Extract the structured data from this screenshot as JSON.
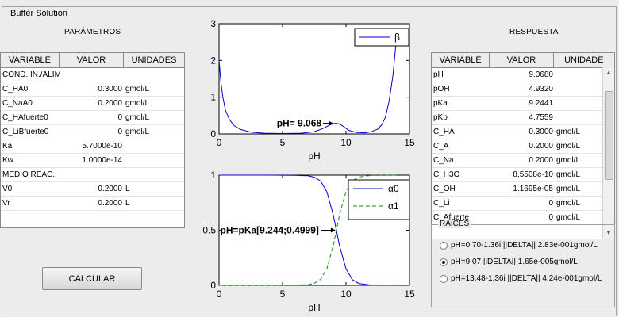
{
  "window": {
    "title": "Buffer Solution"
  },
  "params": {
    "title": "PARÁMETROS",
    "columns": [
      "VARIABLE",
      "VALOR",
      "UNIDADES"
    ],
    "rows": [
      [
        "COND. IN./ALIM.",
        "",
        ""
      ],
      [
        "C_HA0",
        "0.3000",
        "gmol/L"
      ],
      [
        "C_NaA0",
        "0.2000",
        "gmol/L"
      ],
      [
        "C_HAfuerte0",
        "0",
        "gmol/L"
      ],
      [
        "C_LiBfuerte0",
        "0",
        "gmol/L"
      ],
      [
        "Ka",
        "5.7000e-10",
        ""
      ],
      [
        "Kw",
        "1.0000e-14",
        ""
      ],
      [
        "MEDIO REAC.",
        "",
        ""
      ],
      [
        "V0",
        "0.2000",
        "L"
      ],
      [
        "Vr",
        "0.2000",
        "L"
      ]
    ]
  },
  "response": {
    "title": "RESPUESTA",
    "columns": [
      "VARIABLE",
      "VALOR",
      "UNIDADE"
    ],
    "rows": [
      [
        "pH",
        "9.0680",
        ""
      ],
      [
        "pOH",
        "4.9320",
        ""
      ],
      [
        "pKa",
        "9.2441",
        ""
      ],
      [
        "pKb",
        "4.7559",
        ""
      ],
      [
        "C_HA",
        "0.3000",
        "gmol/L"
      ],
      [
        "C_A",
        "0.2000",
        "gmol/L"
      ],
      [
        "C_Na",
        "0.2000",
        "gmol/L"
      ],
      [
        "C_H3O",
        "8.5508e-10",
        "gmol/L"
      ],
      [
        "C_OH",
        "1.1695e-05",
        "gmol/L"
      ],
      [
        "C_Li",
        "0",
        "gmol/L"
      ],
      [
        "C_Afuerte",
        "0",
        "gmol/L"
      ]
    ]
  },
  "buttons": {
    "calc": "CALCULAR"
  },
  "roots": {
    "title": "RAICES",
    "options": [
      {
        "label": "pH=0.70-1.36i ||DELTA|| 2.83e-001gmol/L",
        "selected": false
      },
      {
        "label": "pH=9.07 ||DELTA|| 1.65e-005gmol/L",
        "selected": true
      },
      {
        "label": "pH=13.48-1.36i ||DELTA|| 4.24e-001gmol/L",
        "selected": false
      }
    ]
  },
  "chart_data": [
    {
      "type": "line",
      "xlabel": "pH",
      "xlim": [
        0,
        15
      ],
      "ylim": [
        0,
        3
      ],
      "xticks": [
        "0",
        "5",
        "10",
        "15"
      ],
      "yticks": [
        "0",
        "1",
        "2",
        "3"
      ],
      "series": [
        {
          "name": "β",
          "color": "#0000cc",
          "x": [
            0,
            0.15,
            0.3,
            0.5,
            0.8,
            1.2,
            1.7,
            2.5,
            3.5,
            5,
            6.5,
            7.5,
            8.2,
            8.7,
            9.0,
            9.24,
            9.5,
            9.8,
            10.2,
            10.8,
            11.5,
            12,
            12.5,
            12.8,
            13.1,
            13.4,
            13.7,
            14
          ],
          "y": [
            2.0,
            1.4,
            1.0,
            0.65,
            0.4,
            0.22,
            0.12,
            0.05,
            0.02,
            0.01,
            0.02,
            0.06,
            0.15,
            0.24,
            0.28,
            0.29,
            0.27,
            0.2,
            0.1,
            0.04,
            0.03,
            0.06,
            0.13,
            0.24,
            0.45,
            0.9,
            1.6,
            2.7
          ]
        }
      ],
      "annotation": {
        "text": "pH= 9.068",
        "x": 9.068,
        "y": 0.29
      }
    },
    {
      "type": "line",
      "xlabel": "pH",
      "xlim": [
        0,
        15
      ],
      "ylim": [
        0,
        1
      ],
      "xticks": [
        "0",
        "5",
        "10",
        "15"
      ],
      "yticks": [
        "0",
        "0.5",
        "1"
      ],
      "series": [
        {
          "name": "α0",
          "color": "#0000cc",
          "dash": false,
          "x": [
            0,
            2,
            4,
            6,
            7,
            7.5,
            8,
            8.5,
            9,
            9.244,
            9.5,
            10,
            10.5,
            11,
            12,
            14
          ],
          "y": [
            1,
            1,
            1,
            0.998,
            0.994,
            0.981,
            0.946,
            0.847,
            0.636,
            0.5,
            0.355,
            0.149,
            0.052,
            0.017,
            0.002,
            0
          ]
        },
        {
          "name": "α1",
          "color": "#118811",
          "dash": true,
          "x": [
            0,
            2,
            4,
            6,
            7,
            7.5,
            8,
            8.5,
            9,
            9.244,
            9.5,
            10,
            10.5,
            11,
            12,
            14
          ],
          "y": [
            0,
            0,
            0,
            0.002,
            0.006,
            0.019,
            0.054,
            0.153,
            0.364,
            0.5,
            0.645,
            0.851,
            0.948,
            0.983,
            0.998,
            1
          ]
        }
      ],
      "annotation": {
        "text": "pH=pKa[9.244;0.4999]",
        "x": 9.244,
        "y": 0.4999
      }
    }
  ]
}
